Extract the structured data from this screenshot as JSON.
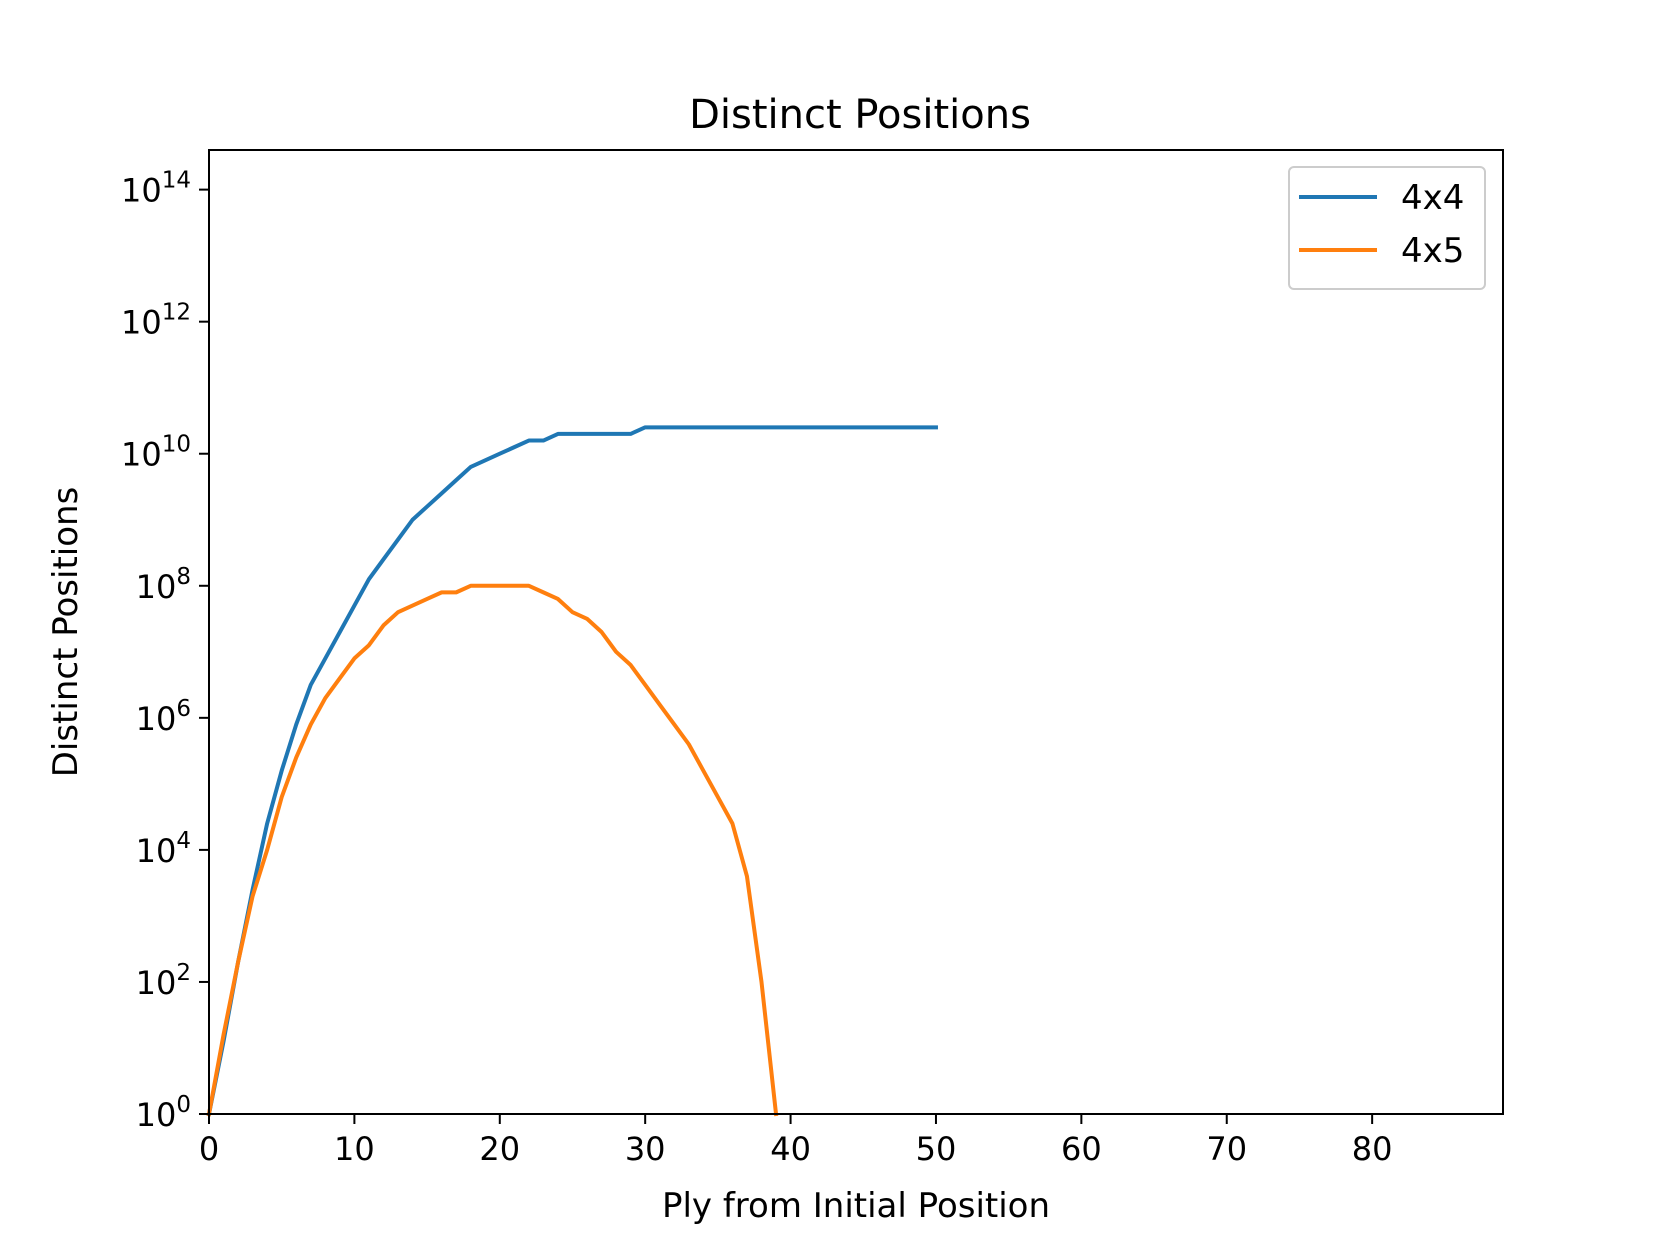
{
  "chart_data": {
    "type": "line",
    "title": "Distinct Positions",
    "xlabel": "Ply from Initial Position",
    "ylabel": "Distinct Positions",
    "x_scale": "linear",
    "y_scale": "log",
    "xlim": [
      0,
      89
    ],
    "ylim_log10": [
      0,
      14.6
    ],
    "x_ticks": [
      0,
      10,
      20,
      30,
      40,
      50,
      60,
      70,
      80
    ],
    "y_ticks": [
      {
        "base": "10",
        "exp": "0"
      },
      {
        "base": "10",
        "exp": "2"
      },
      {
        "base": "10",
        "exp": "4"
      },
      {
        "base": "10",
        "exp": "6"
      },
      {
        "base": "10",
        "exp": "8"
      },
      {
        "base": "10",
        "exp": "10"
      },
      {
        "base": "10",
        "exp": "12"
      },
      {
        "base": "10",
        "exp": "14"
      }
    ],
    "grid": false,
    "legend_position": "upper-right",
    "series": [
      {
        "name": "4x4",
        "color": "#1f77b4",
        "x_start": 0,
        "log10_values": [
          0,
          1.1,
          2.3,
          3.4,
          4.4,
          5.2,
          5.9,
          6.5,
          6.9,
          7.3,
          7.7,
          8.1,
          8.4,
          8.7,
          9.0,
          9.2,
          9.4,
          9.6,
          9.8,
          9.9,
          10.0,
          10.1,
          10.2,
          10.2,
          10.3,
          10.3,
          10.3,
          10.3,
          10.3,
          10.3,
          10.4,
          10.4,
          10.4,
          10.4,
          10.4,
          10.4,
          10.4,
          10.4,
          10.4,
          10.4,
          10.4,
          10.4,
          10.4,
          10.4,
          10.4,
          10.4,
          10.4,
          10.4,
          10.4,
          10.4,
          10.4
        ]
      },
      {
        "name": "4x5",
        "color": "#ff7f0e",
        "x_start": 0,
        "log10_values": [
          0,
          1.2,
          2.3,
          3.3,
          4.0,
          4.8,
          5.4,
          5.9,
          6.3,
          6.6,
          6.9,
          7.1,
          7.4,
          7.6,
          7.7,
          7.8,
          7.9,
          7.9,
          8.0,
          8.0,
          8.0,
          8.0,
          8.0,
          7.9,
          7.8,
          7.6,
          7.5,
          7.3,
          7.0,
          6.8,
          6.5,
          6.2,
          5.9,
          5.6,
          5.2,
          4.8,
          4.4,
          3.6,
          2.0,
          0.0
        ]
      }
    ]
  }
}
